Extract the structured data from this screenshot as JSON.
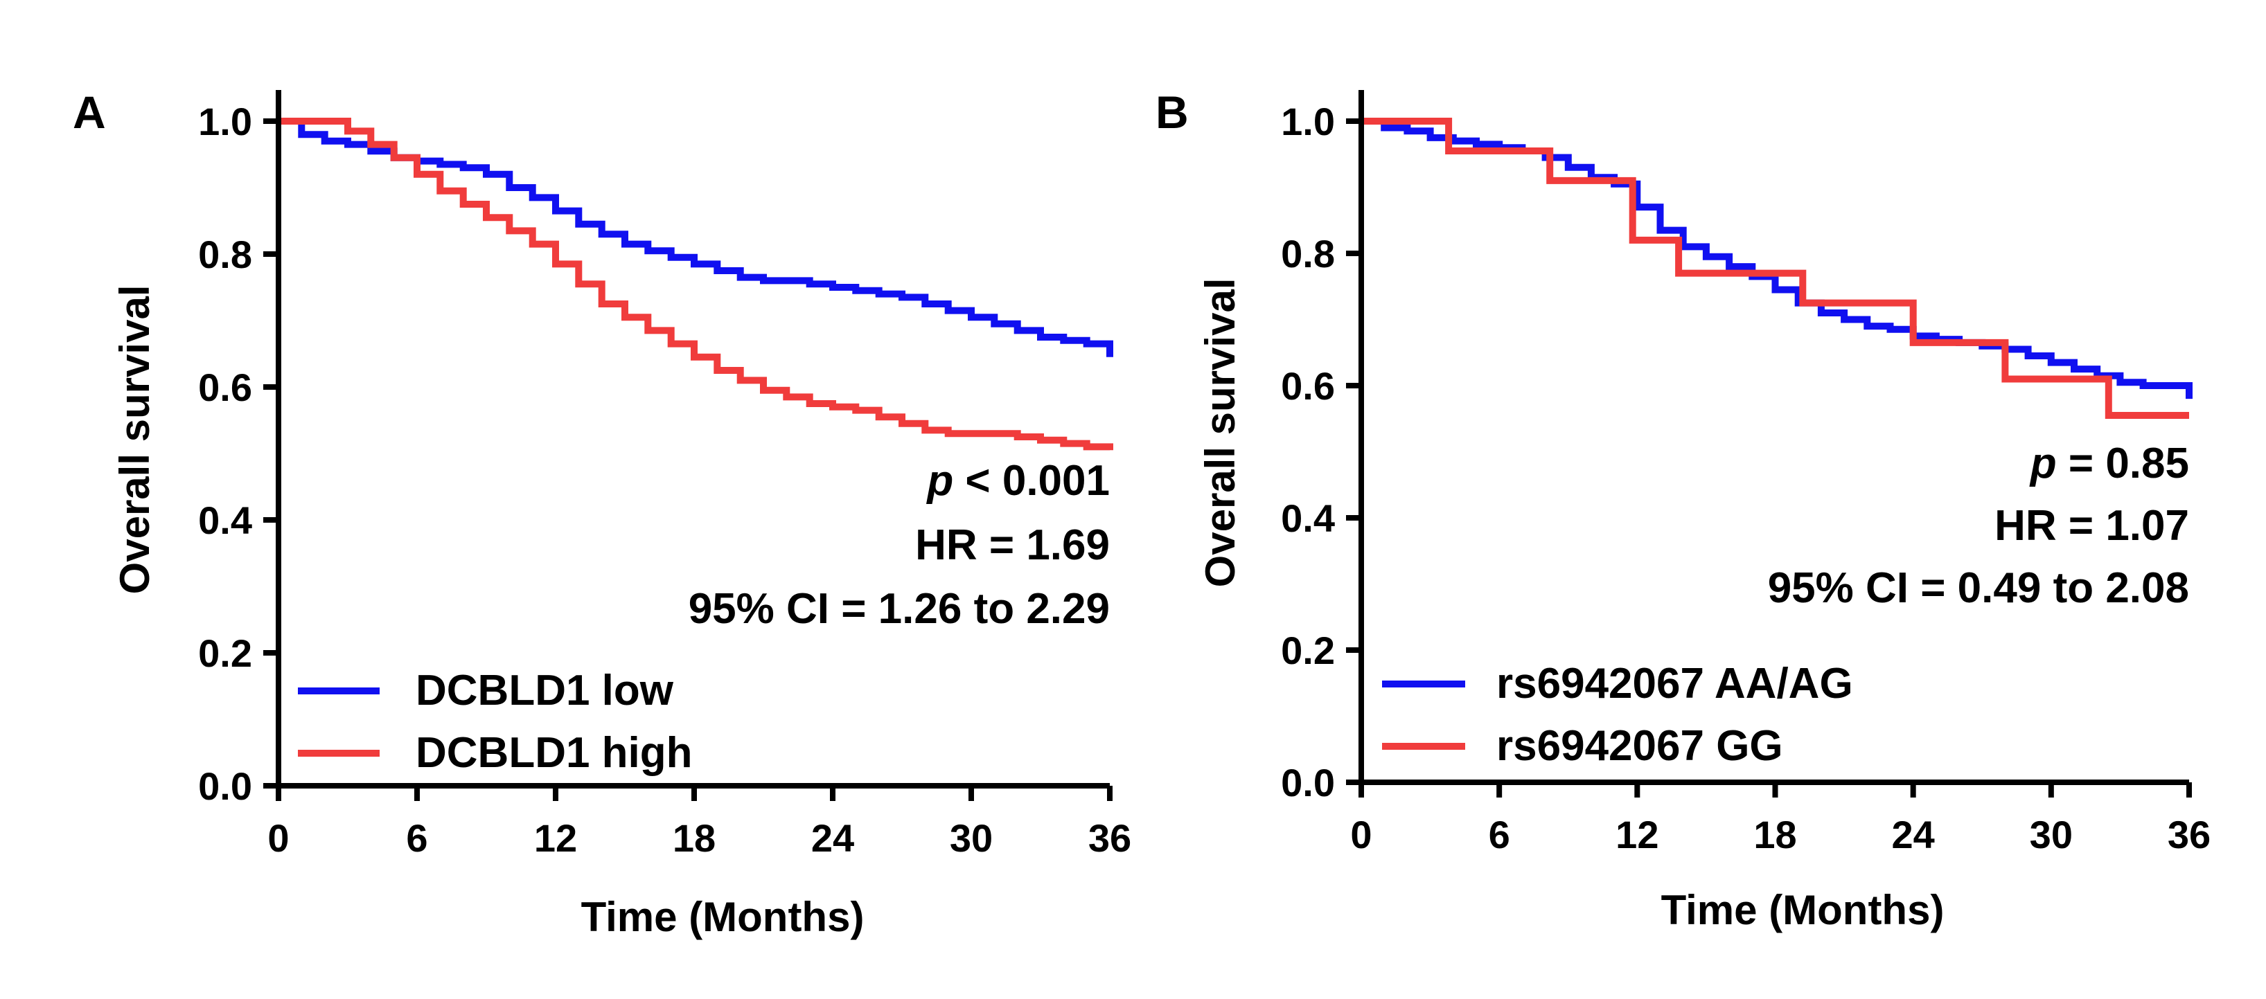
{
  "chart_data": [
    {
      "type": "line",
      "panel_label": "A",
      "xlabel": "Time (Months)",
      "ylabel": "Overall survival",
      "xlim": [
        0,
        36
      ],
      "ylim": [
        0,
        1.0
      ],
      "xticks": [
        "0",
        "6",
        "12",
        "18",
        "24",
        "30",
        "36"
      ],
      "yticks": [
        "0.0",
        "0.2",
        "0.4",
        "0.6",
        "0.8",
        "1.0"
      ],
      "grid": false,
      "legend_position": "bottom-left",
      "annotations": {
        "p_prefix": "p",
        "p_rest": " < 0.001",
        "hr": "HR = 1.69",
        "ci": "95% CI = 1.26 to 2.29"
      },
      "series": [
        {
          "name": "DCBLD1 low",
          "color": "#1010f0",
          "x": [
            0,
            1,
            2,
            3,
            4,
            5,
            6,
            7,
            8,
            9,
            10,
            11,
            12,
            13,
            14,
            15,
            16,
            17,
            18,
            19,
            20,
            21,
            22,
            23,
            24,
            25,
            26,
            27,
            28,
            29,
            30,
            31,
            32,
            33,
            34,
            35,
            36
          ],
          "y": [
            1.0,
            0.98,
            0.97,
            0.965,
            0.955,
            0.945,
            0.94,
            0.935,
            0.93,
            0.92,
            0.9,
            0.885,
            0.865,
            0.845,
            0.83,
            0.815,
            0.805,
            0.795,
            0.785,
            0.775,
            0.765,
            0.76,
            0.76,
            0.755,
            0.75,
            0.745,
            0.74,
            0.735,
            0.725,
            0.715,
            0.705,
            0.695,
            0.685,
            0.675,
            0.67,
            0.665,
            0.645
          ]
        },
        {
          "name": "DCBLD1 high",
          "color": "#f03c3c",
          "x": [
            0,
            1,
            2,
            3,
            4,
            5,
            6,
            7,
            8,
            9,
            10,
            11,
            12,
            13,
            14,
            15,
            16,
            17,
            18,
            19,
            20,
            21,
            22,
            23,
            24,
            25,
            26,
            27,
            28,
            29,
            30,
            31,
            32,
            33,
            34,
            35,
            36
          ],
          "y": [
            1.0,
            1.0,
            1.0,
            0.985,
            0.965,
            0.945,
            0.92,
            0.895,
            0.875,
            0.855,
            0.835,
            0.815,
            0.785,
            0.755,
            0.725,
            0.705,
            0.685,
            0.665,
            0.645,
            0.625,
            0.61,
            0.595,
            0.585,
            0.575,
            0.57,
            0.565,
            0.555,
            0.545,
            0.535,
            0.53,
            0.53,
            0.53,
            0.525,
            0.52,
            0.515,
            0.51,
            0.505
          ]
        }
      ]
    },
    {
      "type": "line",
      "panel_label": "B",
      "xlabel": "Time (Months)",
      "ylabel": "Overall survival",
      "xlim": [
        0,
        36
      ],
      "ylim": [
        0,
        1.0
      ],
      "xticks": [
        "0",
        "6",
        "12",
        "18",
        "24",
        "30",
        "36"
      ],
      "yticks": [
        "0.0",
        "0.2",
        "0.4",
        "0.6",
        "0.8",
        "1.0"
      ],
      "grid": false,
      "legend_position": "bottom-left",
      "annotations": {
        "p_prefix": "p",
        "p_rest": " = 0.85",
        "hr": "HR = 1.07",
        "ci": "95%  CI = 0.49 to 2.08"
      },
      "series": [
        {
          "name": "rs6942067 AA/AG",
          "color": "#1010f0",
          "x": [
            0,
            1,
            2,
            3,
            4,
            5,
            6,
            7,
            8,
            9,
            10,
            11,
            12,
            13,
            14,
            15,
            16,
            17,
            18,
            19,
            20,
            21,
            22,
            23,
            24,
            25,
            26,
            27,
            28,
            29,
            30,
            31,
            32,
            33,
            34,
            35,
            36
          ],
          "y": [
            1.0,
            0.99,
            0.985,
            0.975,
            0.97,
            0.965,
            0.96,
            0.955,
            0.945,
            0.93,
            0.915,
            0.905,
            0.87,
            0.835,
            0.81,
            0.795,
            0.78,
            0.765,
            0.745,
            0.725,
            0.71,
            0.7,
            0.69,
            0.685,
            0.675,
            0.67,
            0.665,
            0.66,
            0.655,
            0.645,
            0.635,
            0.625,
            0.615,
            0.605,
            0.6,
            0.6,
            0.58
          ]
        },
        {
          "name": "rs6942067 GG",
          "color": "#f03c3c",
          "step": true,
          "x": [
            0,
            3.8,
            8.2,
            11.8,
            13.8,
            19.2,
            24,
            28,
            32.5,
            36
          ],
          "y": [
            1.0,
            0.955,
            0.91,
            0.82,
            0.77,
            0.725,
            0.665,
            0.61,
            0.555,
            0.555
          ]
        }
      ]
    }
  ]
}
